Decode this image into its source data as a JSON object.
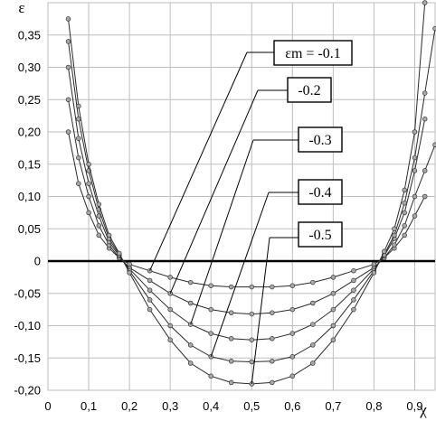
{
  "chart_data": {
    "type": "line",
    "xlabel": "χ",
    "ylabel": "ε",
    "xlim": [
      0,
      0.95
    ],
    "ylim": [
      -0.2,
      0.4
    ],
    "x_ticks": [
      0,
      0.1,
      0.2,
      0.3,
      0.4,
      0.5,
      0.6,
      0.7,
      0.8,
      0.9
    ],
    "x_tick_labels": [
      "0",
      "0,1",
      "0,2",
      "0,3",
      "0,4",
      "0,5",
      "0,6",
      "0,7",
      "0,8",
      "0,9"
    ],
    "y_ticks": [
      0.35,
      0.3,
      0.25,
      0.2,
      0.15,
      0.1,
      0.05,
      0,
      -0.05,
      -0.1,
      -0.15,
      -0.2
    ],
    "y_tick_labels": [
      "0,35",
      "0,30",
      "0,25",
      "0,20",
      "0,15",
      "0,10",
      "0,05",
      "0",
      "-0,05",
      "-0,10",
      "-0,15",
      "-0,20"
    ],
    "grid": true,
    "series": [
      {
        "name": "εm = -0.1",
        "x": [
          0.05,
          0.075,
          0.1,
          0.125,
          0.15,
          0.175,
          0.2,
          0.25,
          0.3,
          0.35,
          0.4,
          0.45,
          0.5,
          0.55,
          0.6,
          0.65,
          0.7,
          0.75,
          0.8,
          0.825,
          0.85,
          0.875,
          0.9,
          0.925
        ],
        "y": [
          0.2,
          0.12,
          0.075,
          0.04,
          0.02,
          0.005,
          -0.005,
          -0.015,
          -0.025,
          -0.033,
          -0.038,
          -0.04,
          -0.04,
          -0.04,
          -0.038,
          -0.033,
          -0.025,
          -0.015,
          -0.005,
          0.005,
          0.02,
          0.04,
          0.07,
          0.1
        ]
      },
      {
        "name": "-0.2",
        "x": [
          0.05,
          0.075,
          0.1,
          0.125,
          0.15,
          0.175,
          0.2,
          0.25,
          0.3,
          0.35,
          0.4,
          0.45,
          0.5,
          0.55,
          0.6,
          0.65,
          0.7,
          0.75,
          0.8,
          0.825,
          0.85,
          0.875,
          0.9,
          0.925,
          0.95
        ],
        "y": [
          0.25,
          0.16,
          0.1,
          0.055,
          0.025,
          0.005,
          -0.01,
          -0.03,
          -0.05,
          -0.065,
          -0.075,
          -0.08,
          -0.082,
          -0.08,
          -0.075,
          -0.065,
          -0.05,
          -0.03,
          -0.01,
          0.005,
          0.025,
          0.055,
          0.1,
          0.14,
          0.18
        ]
      },
      {
        "name": "-0.3",
        "x": [
          0.05,
          0.075,
          0.1,
          0.125,
          0.15,
          0.175,
          0.2,
          0.25,
          0.3,
          0.35,
          0.4,
          0.45,
          0.5,
          0.55,
          0.6,
          0.65,
          0.7,
          0.75,
          0.8,
          0.825,
          0.85,
          0.875,
          0.9,
          0.925
        ],
        "y": [
          0.3,
          0.19,
          0.12,
          0.07,
          0.03,
          0.008,
          -0.012,
          -0.045,
          -0.075,
          -0.098,
          -0.112,
          -0.12,
          -0.122,
          -0.12,
          -0.112,
          -0.098,
          -0.075,
          -0.045,
          -0.012,
          0.008,
          0.035,
          0.075,
          0.14,
          0.22
        ]
      },
      {
        "name": "-0.4",
        "x": [
          0.05,
          0.075,
          0.1,
          0.125,
          0.15,
          0.175,
          0.2,
          0.25,
          0.3,
          0.35,
          0.4,
          0.45,
          0.5,
          0.55,
          0.6,
          0.65,
          0.7,
          0.75,
          0.8,
          0.825,
          0.85,
          0.875,
          0.9,
          0.925,
          0.95
        ],
        "y": [
          0.34,
          0.22,
          0.14,
          0.08,
          0.035,
          0.01,
          -0.015,
          -0.06,
          -0.1,
          -0.13,
          -0.148,
          -0.155,
          -0.156,
          -0.155,
          -0.148,
          -0.13,
          -0.1,
          -0.06,
          -0.015,
          0.01,
          0.04,
          0.09,
          0.16,
          0.26,
          0.36
        ]
      },
      {
        "name": "-0.5",
        "x": [
          0.05,
          0.075,
          0.1,
          0.125,
          0.15,
          0.175,
          0.2,
          0.25,
          0.3,
          0.35,
          0.4,
          0.45,
          0.5,
          0.55,
          0.6,
          0.65,
          0.7,
          0.75,
          0.8,
          0.825,
          0.85,
          0.875,
          0.9,
          0.925
        ],
        "y": [
          0.375,
          0.24,
          0.15,
          0.088,
          0.04,
          0.012,
          -0.018,
          -0.075,
          -0.122,
          -0.158,
          -0.178,
          -0.188,
          -0.19,
          -0.188,
          -0.178,
          -0.158,
          -0.122,
          -0.075,
          -0.018,
          0.015,
          0.05,
          0.11,
          0.2,
          0.4
        ]
      }
    ],
    "annotations": [
      {
        "label": "εm = -0.1",
        "series": "εm = -0.1"
      },
      {
        "label": "-0.2",
        "series": "-0.2"
      },
      {
        "label": "-0.3",
        "series": "-0.3"
      },
      {
        "label": "-0.4",
        "series": "-0.4"
      },
      {
        "label": "-0.5",
        "series": "-0.5"
      }
    ],
    "colors": {
      "line": "#2a2a2a",
      "marker_fill": "#a8a8a8",
      "grid": "#bdbdbd",
      "zero_line": "#000000"
    }
  }
}
